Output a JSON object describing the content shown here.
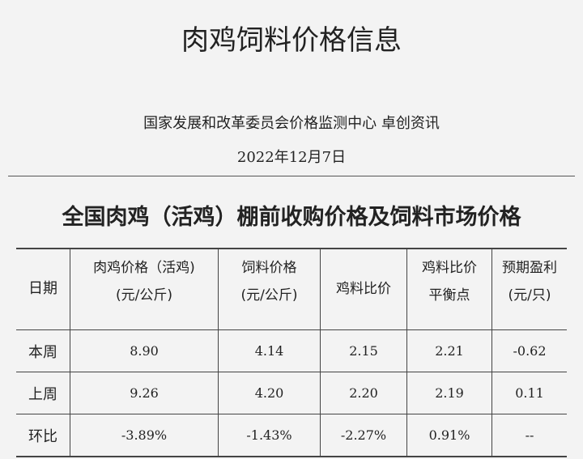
{
  "title": "肉鸡饲料价格信息",
  "source": "国家发展和改革委员会价格监测中心  卓创资讯",
  "date": "2022年12月7日",
  "heading": "全国肉鸡（活鸡）棚前收购价格及饲料市场价格",
  "table": {
    "headers": [
      {
        "l1": "日期",
        "l2": ""
      },
      {
        "l1": "肉鸡价格（活鸡)",
        "l2": "(元/公斤)"
      },
      {
        "l1": "饲料价格",
        "l2": "(元/公斤)"
      },
      {
        "l1": "鸡料比价",
        "l2": ""
      },
      {
        "l1": "鸡料比价",
        "l2": "平衡点"
      },
      {
        "l1": "预期盈利",
        "l2": "(元/只)"
      }
    ],
    "rows": [
      [
        "本周",
        "8.90",
        "4.14",
        "2.15",
        "2.21",
        "-0.62"
      ],
      [
        "上周",
        "9.26",
        "4.20",
        "2.20",
        "2.19",
        "0.11"
      ],
      [
        "环比",
        "-3.89%",
        "-1.43%",
        "-2.27%",
        "0.91%",
        "--"
      ]
    ]
  }
}
